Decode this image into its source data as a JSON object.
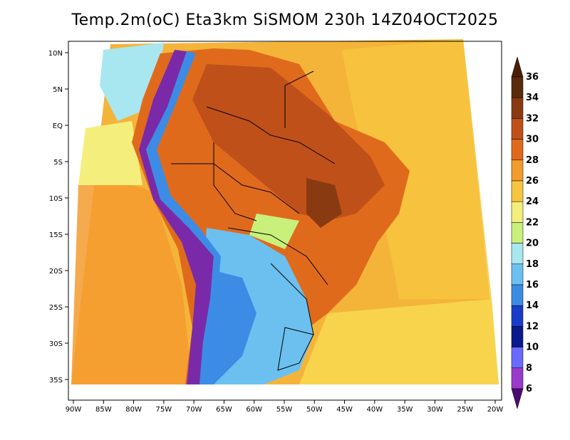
{
  "title": "Temp.2m(oC) Eta3km SiSMOM 230h 14Z04OCT2025",
  "map": {
    "lon_ticks": [
      "90W",
      "85W",
      "80W",
      "75W",
      "70W",
      "65W",
      "60W",
      "55W",
      "50W",
      "45W",
      "40W",
      "35W",
      "30W",
      "25W",
      "20W"
    ],
    "lat_ticks": [
      "10N",
      "5N",
      "EQ",
      "5S",
      "10S",
      "15S",
      "20S",
      "25S",
      "30S",
      "35S"
    ]
  },
  "colorbar": {
    "levels": [
      "36",
      "34",
      "32",
      "30",
      "28",
      "26",
      "24",
      "22",
      "20",
      "18",
      "16",
      "14",
      "12",
      "10",
      "8",
      "6"
    ],
    "colors": [
      "#5a2a0c",
      "#8a3a10",
      "#c0501a",
      "#e06a1c",
      "#f39b2e",
      "#f7c640",
      "#f4ee7c",
      "#c8f07a",
      "#a8e6f0",
      "#6cc0f0",
      "#3c8ce6",
      "#1a3cc8",
      "#0a1a8c",
      "#6a6aff",
      "#9a3acc",
      "#5a0a8c"
    ],
    "top_arrow_color": "#4a1e08",
    "bottom_arrow_color": "#4a0a70"
  },
  "palette": {
    "ocean_warm": "#f4b43a",
    "ocean_cool": "#f7d44c",
    "land_hot": "#d0601a",
    "land_very_hot": "#a84616",
    "andes_cold": "#7a2aa8",
    "south_cool": "#6cc0f0",
    "south_cold": "#2a60d8",
    "coast_green": "#bfe8a0"
  }
}
